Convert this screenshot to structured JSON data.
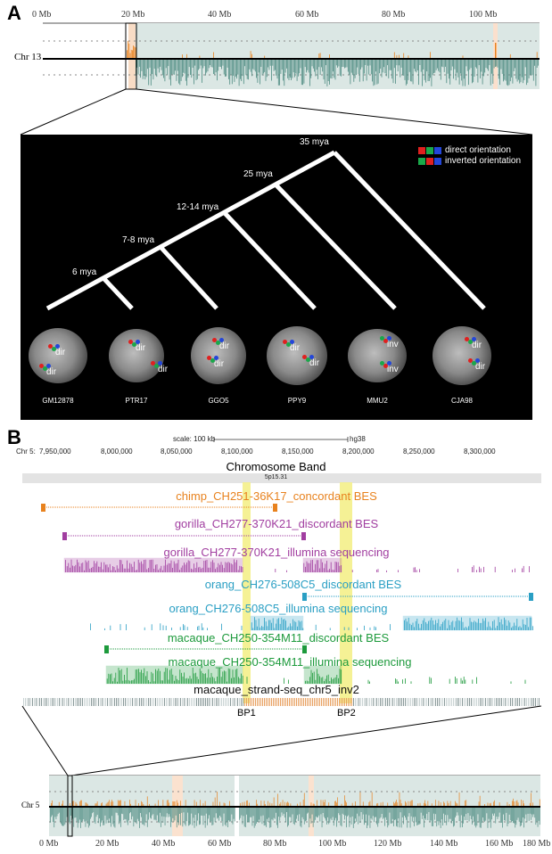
{
  "panel_a": {
    "letter": "A",
    "ticks": [
      "0 Mb",
      "20 Mb",
      "40 Mb",
      "60 Mb",
      "80 Mb",
      "100 Mb"
    ],
    "chromosome": "Chr 13",
    "phylogeny": {
      "nodes": [
        "35 mya",
        "25 mya",
        "12-14 mya",
        "7-8 mya",
        "6 mya"
      ],
      "legend": {
        "direct": "direct orientation",
        "inverted": "inverted orientation"
      },
      "colors": {
        "red": "#e0201f",
        "green": "#1aa84a",
        "blue": "#2346d9"
      },
      "cells": [
        {
          "name": "GM12878",
          "labels": [
            "dir",
            "dir"
          ]
        },
        {
          "name": "PTR17",
          "labels": [
            "dir",
            "dir"
          ]
        },
        {
          "name": "GGO5",
          "labels": [
            "dir",
            "dir"
          ]
        },
        {
          "name": "PPY9",
          "labels": [
            "dir",
            "dir"
          ]
        },
        {
          "name": "MMU2",
          "labels": [
            "inv",
            "inv"
          ]
        },
        {
          "name": "CJA98",
          "labels": [
            "dir",
            "dir"
          ]
        }
      ]
    }
  },
  "panel_b": {
    "letter": "B",
    "scale_label": "scale:",
    "scale_value": "100 kb",
    "assembly": "hg38",
    "chr_label": "Chr 5:",
    "coord_ticks": [
      "7,950,000",
      "8,000,000",
      "8,050,000",
      "8,100,000",
      "8,150,000",
      "8,200,000",
      "8,250,000",
      "8,300,000"
    ],
    "chromosome_band_title": "Chromosome Band",
    "band_label": "5p15.31",
    "tracks": [
      {
        "label": "chimp_CH251-36K17_concordant BES",
        "color": "#e8821e"
      },
      {
        "label": "gorilla_CH277-370K21_discordant BES",
        "color": "#a13ea0"
      },
      {
        "label": "gorilla_CH277-370K21_illumina sequencing",
        "color": "#a13ea0"
      },
      {
        "label": "orang_CH276-508C5_discordant BES",
        "color": "#2a9fc4"
      },
      {
        "label": "orang_CH276-508C5_illumina sequencing",
        "color": "#2a9fc4"
      },
      {
        "label": "macaque_CH250-354M11_discordant BES",
        "color": "#1d9a3c"
      },
      {
        "label": "macaque_CH250-354M11_illumina sequencing",
        "color": "#1d9a3c"
      },
      {
        "label": "macaque_strand-seq_chr5_inv2",
        "color": "#111111"
      }
    ],
    "breakpoints": [
      "BP1",
      "BP2"
    ],
    "bottom_chromosome": "Chr 5",
    "bottom_ticks": [
      "0 Mb",
      "20 Mb",
      "40 Mb",
      "60 Mb",
      "80 Mb",
      "100 Mb",
      "120 Mb",
      "140 Mb",
      "160 Mb",
      "180 Mb"
    ]
  }
}
